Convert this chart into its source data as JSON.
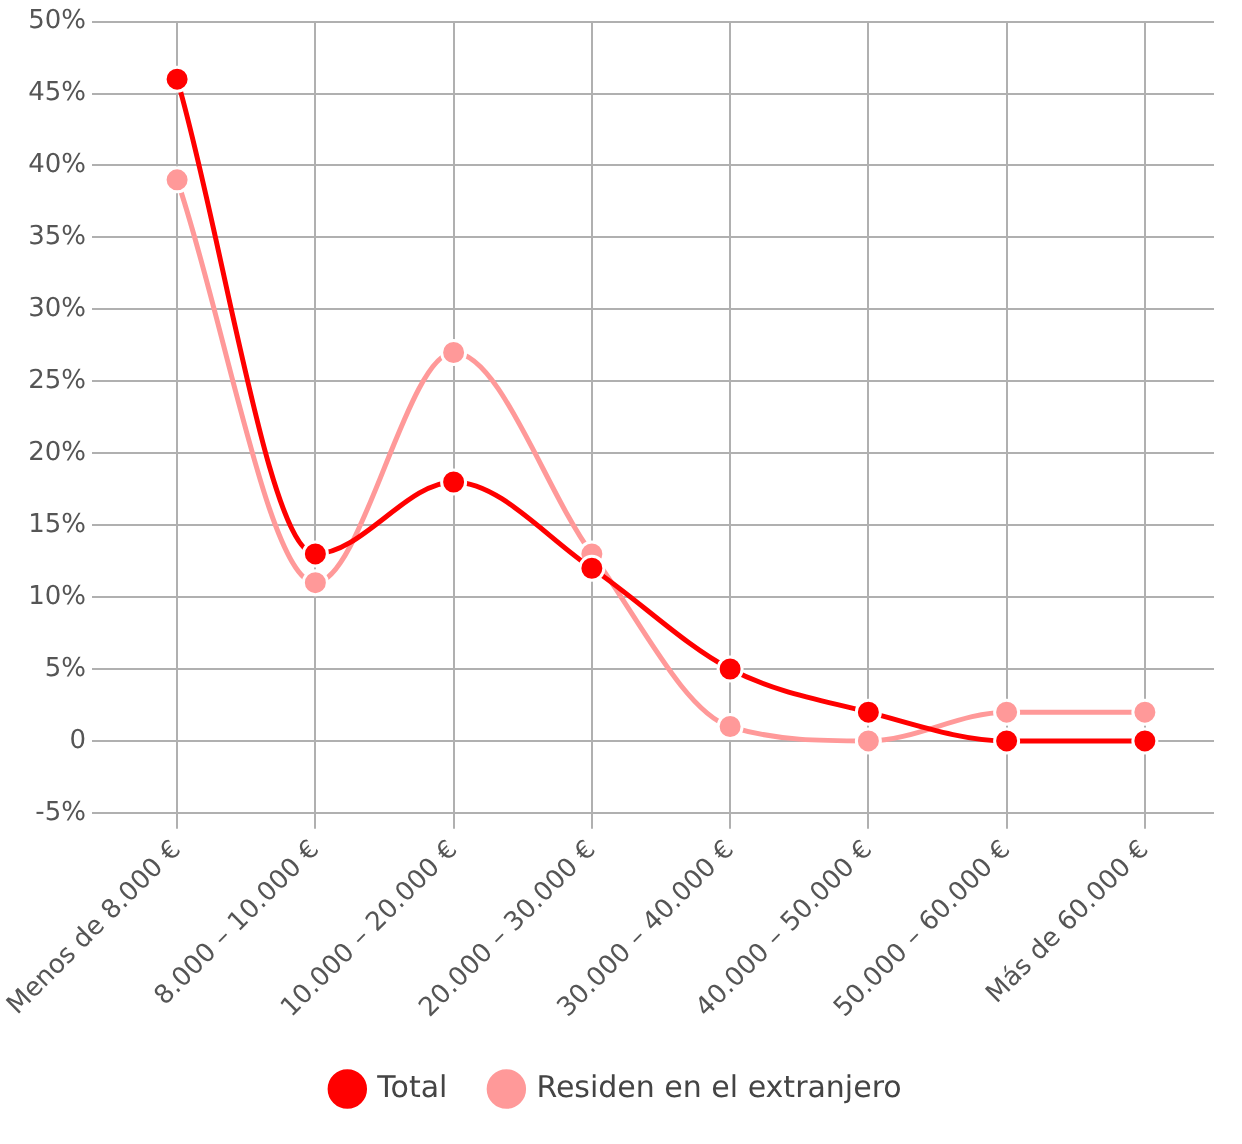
{
  "chart_data": {
    "type": "line",
    "categories": [
      "Menos de 8.000 €",
      "8.000 – 10.000 €",
      "10.000 – 20.000 €",
      "20.000 – 30.000 €",
      "30.000 – 40.000 €",
      "40.000 – 50.000 €",
      "50.000 – 60.000 €",
      "Más de 60.000 €"
    ],
    "series": [
      {
        "name": "Total",
        "color": "#ff0000",
        "values": [
          46,
          13,
          18,
          12,
          5,
          2,
          0,
          0
        ]
      },
      {
        "name": "Residen en el extranjero",
        "color": "#ff9999",
        "values": [
          39,
          11,
          27,
          13,
          1,
          0,
          2,
          2
        ]
      }
    ],
    "ylim": [
      -5,
      50
    ],
    "yticks": [
      {
        "value": -5,
        "label": "-5%"
      },
      0,
      {
        "value": 5,
        "label": "5%"
      },
      {
        "value": 10,
        "label": "10%"
      },
      {
        "value": 15,
        "label": "15%"
      },
      {
        "value": 20,
        "label": "20%"
      },
      {
        "value": 25,
        "label": "25%"
      },
      {
        "value": 30,
        "label": "30%"
      },
      {
        "value": 35,
        "label": "35%"
      },
      {
        "value": 40,
        "label": "40%"
      },
      {
        "value": 45,
        "label": "45%"
      },
      {
        "value": 50,
        "label": "50%"
      }
    ],
    "grid": true,
    "legend": "bottom",
    "marker": "circle",
    "line_style": "solid"
  }
}
